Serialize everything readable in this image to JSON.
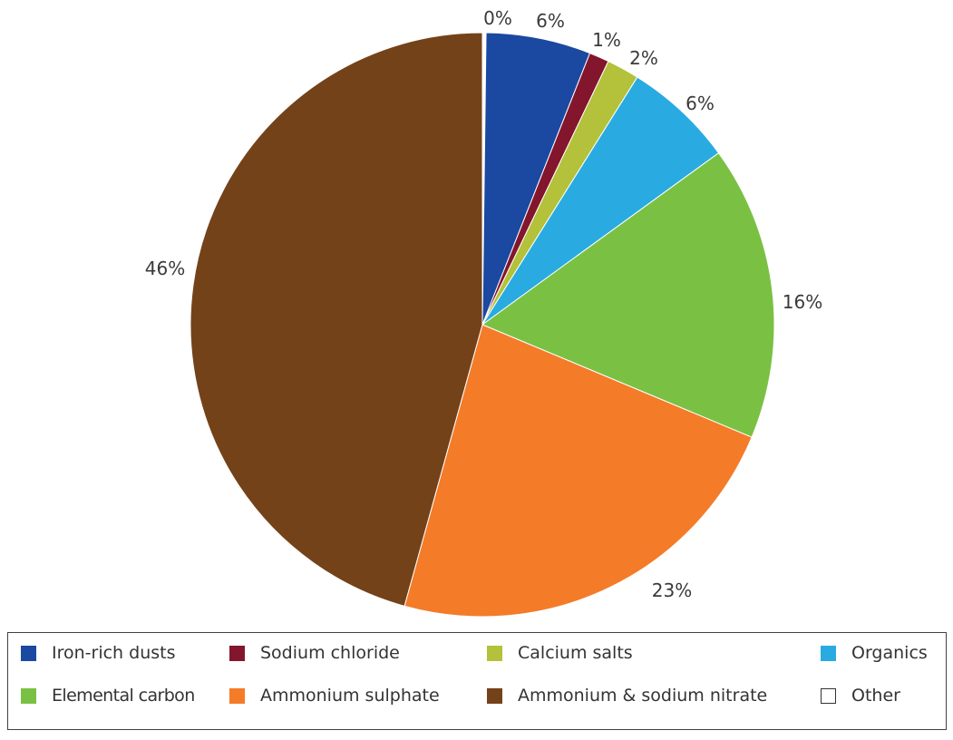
{
  "chart_data": {
    "type": "pie",
    "title": "",
    "start_angle_deg": 0,
    "direction": "clockwise",
    "legend_position": "bottom",
    "slices": [
      {
        "label": "Other",
        "value": 0.2,
        "display": "0%",
        "color": "#ffffff"
      },
      {
        "label": "Iron-rich dusts",
        "value": 5.8,
        "display": "6%",
        "color": "#1b48a0"
      },
      {
        "label": "Sodium chloride",
        "value": 1.1,
        "display": "1%",
        "color": "#83162c"
      },
      {
        "label": "Calcium salts",
        "value": 1.8,
        "display": "2%",
        "color": "#b3c13b"
      },
      {
        "label": "Organics",
        "value": 6.1,
        "display": "6%",
        "color": "#29abe2"
      },
      {
        "label": "Elemental carbon",
        "value": 16.3,
        "display": "16%",
        "color": "#7ac143"
      },
      {
        "label": "Ammonium sulphate",
        "value": 23.0,
        "display": "23%",
        "color": "#f47b28"
      },
      {
        "label": "Ammonium & sodium nitrate",
        "value": 45.7,
        "display": "46%",
        "color": "#744219"
      }
    ]
  },
  "legend": {
    "items": [
      {
        "label": "Iron-rich dusts",
        "color": "#1b48a0"
      },
      {
        "label": "Sodium chloride",
        "color": "#83162c"
      },
      {
        "label": "Calcium salts",
        "color": "#b3c13b"
      },
      {
        "label": "Organics",
        "color": "#29abe2"
      },
      {
        "label": "Elemental carbon",
        "color": "#7ac143"
      },
      {
        "label": "Ammonium sulphate",
        "color": "#f47b28"
      },
      {
        "label": "Ammonium & sodium nitrate",
        "color": "#744219"
      },
      {
        "label": "Other",
        "color": "#ffffff"
      }
    ]
  }
}
